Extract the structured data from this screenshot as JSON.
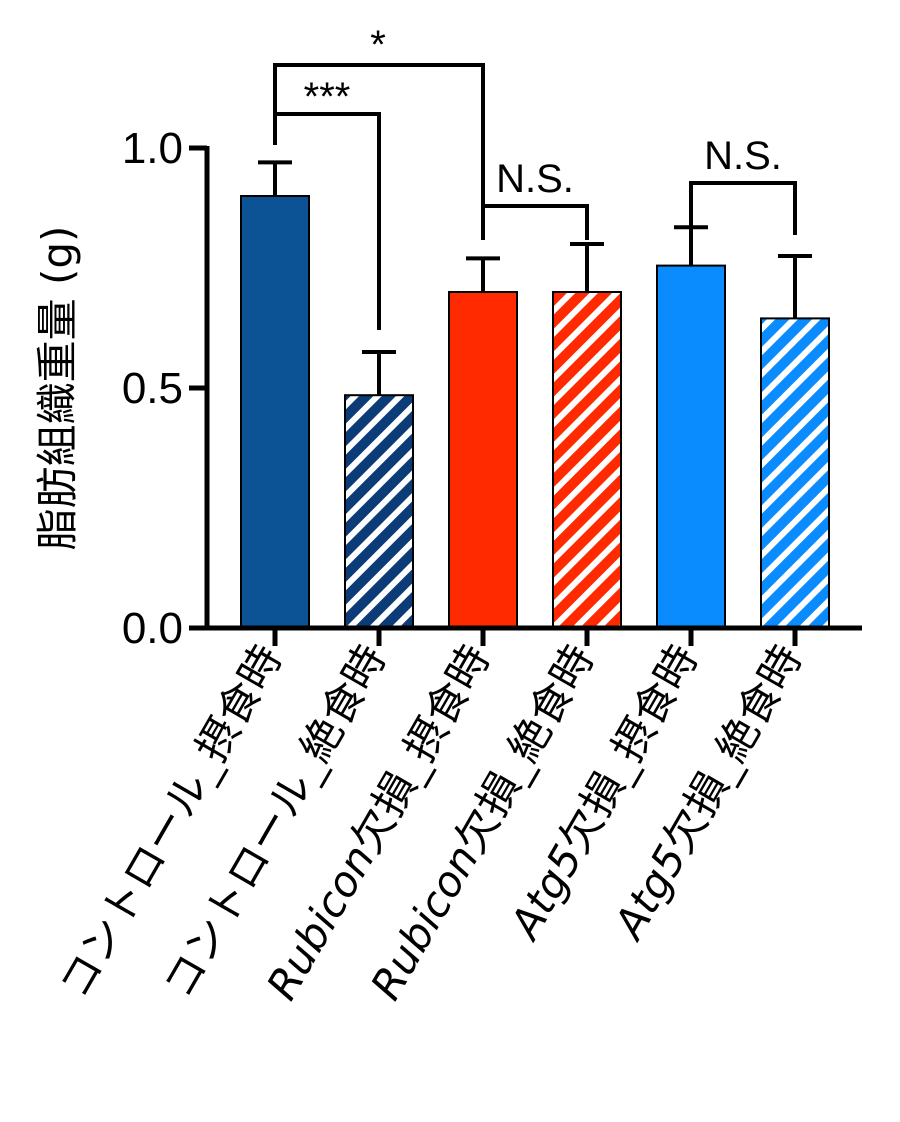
{
  "chart_data": {
    "type": "bar",
    "ylabel": "脂肪組織重量 (g)",
    "ylim": [
      0,
      1.0
    ],
    "yticks": [
      "0.0",
      "0.5",
      "1.0"
    ],
    "grid": false,
    "categories": [
      {
        "latin": "",
        "jp": "コントロール_摂食時"
      },
      {
        "latin": "",
        "jp": "コントロール_絶食時"
      },
      {
        "latin": "Rubicon",
        "jp": "欠損_摂食時"
      },
      {
        "latin": "Rubicon",
        "jp": "欠損_絶食時"
      },
      {
        "latin": "Atg5",
        "jp": "欠損_摂食時"
      },
      {
        "latin": "Atg5",
        "jp": "欠損_絶食時"
      }
    ],
    "values": [
      0.9,
      0.485,
      0.7,
      0.7,
      0.755,
      0.645
    ],
    "errors": [
      0.07,
      0.09,
      0.07,
      0.1,
      0.08,
      0.13
    ],
    "colors": [
      "#0b5394",
      "#0b3c78",
      "#ff2a00",
      "#ff2a00",
      "#0a8cff",
      "#0a8cff"
    ],
    "hatched": [
      false,
      true,
      false,
      true,
      false,
      true
    ],
    "significance": [
      {
        "from": 0,
        "to": 1,
        "label": "***"
      },
      {
        "from": 0,
        "to": 2,
        "label": "*"
      },
      {
        "from": 2,
        "to": 3,
        "label": "N.S."
      },
      {
        "from": 4,
        "to": 5,
        "label": "N.S."
      }
    ]
  }
}
